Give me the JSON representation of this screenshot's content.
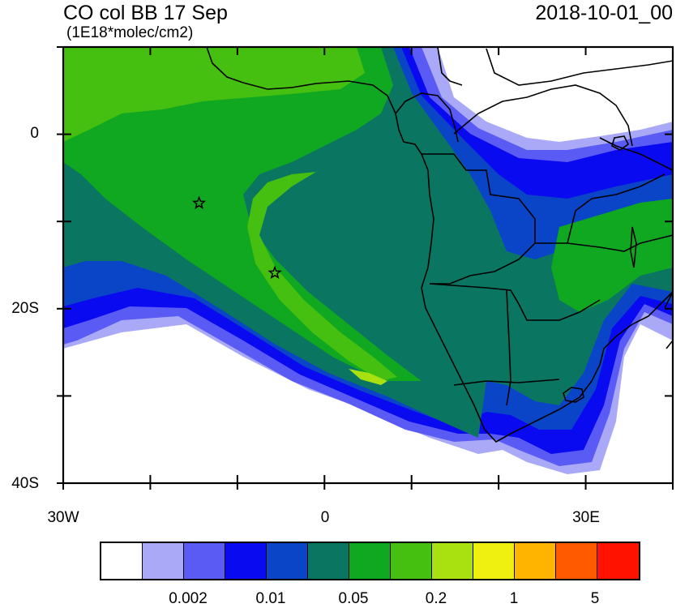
{
  "title": "CO col BB 17 Sep",
  "units": "(1E18*molec/cm2)",
  "timestamp": "2018-10-01_00",
  "y_axis": {
    "ticks": [
      {
        "value": 0,
        "label": "0"
      },
      {
        "value": -20,
        "label": "20S"
      },
      {
        "value": -40,
        "label": "40S"
      }
    ]
  },
  "x_axis": {
    "ticks": [
      {
        "value": -30,
        "label": "30W"
      },
      {
        "value": 0,
        "label": "0"
      },
      {
        "value": 30,
        "label": "30E"
      }
    ]
  },
  "extent": {
    "lon": [
      -30,
      40
    ],
    "lat": [
      -40,
      10
    ]
  },
  "stations": [
    {
      "lon": -14.4,
      "lat": -7.9
    },
    {
      "lon": -5.7,
      "lat": -15.9
    }
  ],
  "colorbar": {
    "colors": [
      "#ffffff",
      "#a9a9f7",
      "#5a5af5",
      "#0a0af0",
      "#0a45c8",
      "#0a7560",
      "#10a820",
      "#45c010",
      "#a8e010",
      "#f0f010",
      "#ffb400",
      "#ff5a00",
      "#ff1200"
    ],
    "labels": [
      "0.002",
      "0.01",
      "0.05",
      "0.2",
      "1",
      "5"
    ]
  },
  "colors": {
    "land": "#ffffff",
    "border": "#000000"
  }
}
